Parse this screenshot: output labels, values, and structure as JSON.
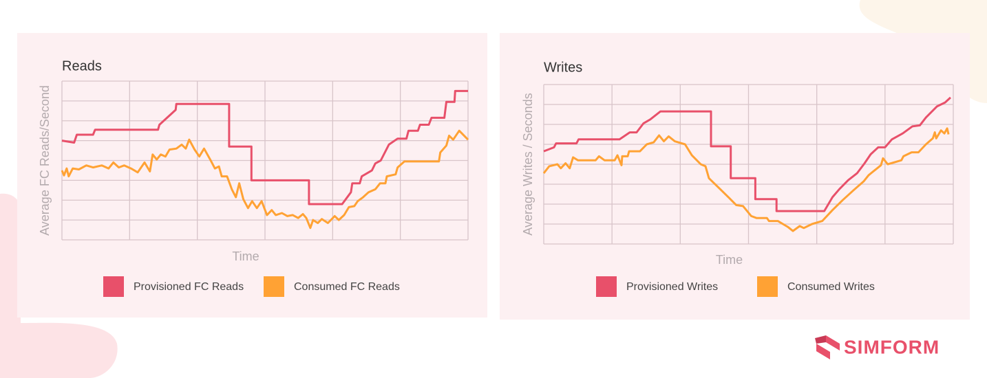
{
  "chart_data": [
    {
      "type": "line",
      "title": "Reads",
      "ylabel": "Average FC Reads/Second",
      "xlabel": "Time",
      "xlim": [
        0,
        6
      ],
      "ylim": [
        0,
        8
      ],
      "xgrid": [
        0,
        1,
        2,
        3,
        4,
        5,
        6
      ],
      "ygrid": [
        0,
        1,
        2,
        3,
        4,
        5,
        6,
        7,
        8
      ],
      "grid": true,
      "series": [
        {
          "name": "Provisioned FC Reads",
          "color": "#e8506a",
          "x": [
            0,
            0.18,
            0.22,
            0.46,
            0.49,
            1.42,
            1.44,
            1.68,
            1.69,
            2.47,
            2.47,
            2.8,
            2.8,
            3.65,
            3.65,
            4.14,
            4.27,
            4.29,
            4.4,
            4.43,
            4.58,
            4.63,
            4.71,
            4.83,
            4.96,
            5.09,
            5.12,
            5.26,
            5.29,
            5.42,
            5.46,
            5.65,
            5.68,
            5.8,
            5.81,
            6.0
          ],
          "values": [
            5.0,
            4.9,
            5.3,
            5.3,
            5.55,
            5.55,
            5.8,
            6.55,
            6.85,
            6.85,
            4.7,
            4.7,
            3.0,
            3.0,
            1.8,
            1.8,
            2.4,
            2.85,
            2.85,
            3.2,
            3.5,
            3.85,
            4.0,
            4.8,
            5.1,
            5.1,
            5.5,
            5.5,
            5.8,
            5.8,
            6.15,
            6.15,
            6.95,
            6.95,
            7.5,
            7.5
          ]
        },
        {
          "name": "Consumed FC Reads",
          "color": "#ffa234",
          "x": [
            0,
            0.03,
            0.07,
            0.1,
            0.16,
            0.25,
            0.36,
            0.46,
            0.59,
            0.69,
            0.76,
            0.84,
            0.92,
            1.02,
            1.12,
            1.22,
            1.3,
            1.34,
            1.4,
            1.46,
            1.53,
            1.59,
            1.69,
            1.77,
            1.83,
            1.88,
            1.96,
            2.03,
            2.1,
            2.19,
            2.26,
            2.32,
            2.36,
            2.44,
            2.51,
            2.57,
            2.62,
            2.68,
            2.75,
            2.81,
            2.88,
            2.95,
            3.03,
            3.1,
            3.16,
            3.25,
            3.33,
            3.41,
            3.49,
            3.56,
            3.61,
            3.67,
            3.71,
            3.78,
            3.84,
            3.93,
            4.03,
            4.09,
            4.17,
            4.24,
            4.32,
            4.37,
            4.45,
            4.53,
            4.63,
            4.7,
            4.78,
            4.8,
            4.93,
            4.96,
            5.06,
            5.57,
            5.59,
            5.68,
            5.72,
            5.78,
            5.87,
            6.0
          ],
          "values": [
            3.5,
            3.25,
            3.6,
            3.2,
            3.6,
            3.55,
            3.75,
            3.65,
            3.75,
            3.6,
            3.9,
            3.65,
            3.75,
            3.6,
            3.4,
            3.9,
            3.45,
            4.3,
            4.05,
            4.3,
            4.2,
            4.55,
            4.6,
            4.8,
            4.6,
            5.05,
            4.55,
            4.2,
            4.6,
            4.05,
            3.6,
            3.7,
            3.2,
            3.2,
            2.55,
            2.15,
            2.85,
            2.05,
            1.6,
            1.95,
            1.6,
            1.95,
            1.25,
            1.5,
            1.25,
            1.35,
            1.2,
            1.25,
            1.1,
            1.3,
            1.1,
            0.6,
            1.0,
            0.85,
            1.05,
            0.85,
            1.2,
            1.0,
            1.25,
            1.65,
            1.7,
            1.95,
            2.15,
            2.4,
            2.55,
            2.85,
            2.85,
            3.2,
            3.3,
            3.65,
            3.95,
            3.95,
            4.4,
            4.75,
            5.25,
            5.05,
            5.5,
            5.05
          ]
        }
      ]
    },
    {
      "type": "line",
      "title": "Writes",
      "ylabel": "Average Writes / Seconds",
      "xlabel": "Time",
      "xlim": [
        0,
        6
      ],
      "ylim": [
        0,
        8
      ],
      "xgrid": [
        0,
        1,
        2,
        3,
        4,
        5,
        6
      ],
      "ygrid": [
        0,
        1,
        2,
        3,
        4,
        5,
        6,
        7,
        8
      ],
      "grid": true,
      "series": [
        {
          "name": "Provisioned Writes",
          "color": "#e8506a",
          "x": [
            0,
            0.15,
            0.18,
            0.48,
            0.51,
            1.11,
            1.26,
            1.36,
            1.46,
            1.56,
            1.71,
            2.45,
            2.45,
            2.74,
            2.74,
            3.1,
            3.1,
            3.41,
            3.41,
            4.11,
            4.23,
            4.33,
            4.46,
            4.59,
            4.7,
            4.79,
            4.9,
            5.0,
            5.1,
            5.26,
            5.4,
            5.51,
            5.6,
            5.76,
            5.88,
            5.96
          ],
          "values": [
            4.65,
            4.85,
            5.05,
            5.05,
            5.25,
            5.25,
            5.6,
            5.6,
            6.05,
            6.25,
            6.65,
            6.65,
            4.9,
            4.9,
            3.3,
            3.3,
            2.25,
            2.25,
            1.65,
            1.65,
            2.35,
            2.75,
            3.2,
            3.55,
            4.05,
            4.5,
            4.85,
            4.85,
            5.25,
            5.55,
            5.9,
            5.95,
            6.35,
            6.9,
            7.1,
            7.35
          ]
        },
        {
          "name": "Consumed Writes",
          "color": "#ffa234",
          "x": [
            0,
            0.08,
            0.2,
            0.25,
            0.32,
            0.38,
            0.43,
            0.5,
            0.76,
            0.81,
            0.89,
            1.04,
            1.08,
            1.14,
            1.15,
            1.23,
            1.25,
            1.41,
            1.51,
            1.61,
            1.69,
            1.76,
            1.83,
            1.92,
            2.07,
            2.17,
            2.3,
            2.37,
            2.42,
            2.57,
            2.72,
            2.82,
            2.92,
            3.04,
            3.12,
            3.27,
            3.3,
            3.43,
            3.58,
            3.65,
            3.75,
            3.81,
            3.93,
            4.08,
            4.23,
            4.38,
            4.54,
            4.69,
            4.76,
            4.94,
            4.97,
            5.04,
            5.24,
            5.27,
            5.39,
            5.49,
            5.6,
            5.7,
            5.73,
            5.75,
            5.82,
            5.87,
            5.91,
            5.93
          ],
          "values": [
            3.55,
            3.9,
            4.0,
            3.8,
            4.05,
            3.8,
            4.35,
            4.2,
            4.2,
            4.4,
            4.2,
            4.2,
            4.45,
            3.95,
            4.4,
            4.4,
            4.65,
            4.65,
            5.0,
            5.1,
            5.45,
            5.15,
            5.4,
            5.15,
            5.0,
            4.45,
            4.0,
            3.9,
            3.3,
            2.8,
            2.3,
            1.95,
            1.9,
            1.4,
            1.3,
            1.3,
            1.15,
            1.15,
            0.85,
            0.65,
            0.9,
            0.8,
            1.0,
            1.15,
            1.7,
            2.2,
            2.7,
            3.15,
            3.45,
            3.95,
            4.3,
            4.0,
            4.2,
            4.4,
            4.6,
            4.6,
            5.0,
            5.3,
            5.6,
            5.3,
            5.7,
            5.55,
            5.8,
            5.5
          ]
        }
      ]
    }
  ],
  "brand": "SIMFORM"
}
